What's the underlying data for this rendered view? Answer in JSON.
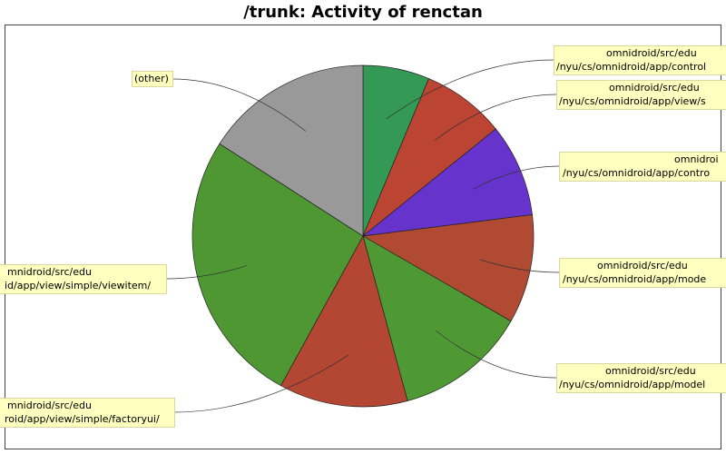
{
  "chart_data": {
    "type": "pie",
    "title": "/trunk: Activity of renctan",
    "categories": [
      [
        "omnidroid/src/edu",
        "/nyu/cs/omnidroid/app/control"
      ],
      [
        "omnidroid/src/edu",
        "/nyu/cs/omnidroid/app/view/s"
      ],
      [
        "omnidroi",
        "/nyu/cs/omnidroid/app/contro"
      ],
      [
        "omnidroid/src/edu",
        "/nyu/cs/omnidroid/app/mode"
      ],
      [
        "omnidroid/src/edu",
        "/nyu/cs/omnidroid/app/model"
      ],
      [
        "mnidroid/src/edu",
        "roid/app/view/simple/factoryui/"
      ],
      [
        "mnidroid/src/edu",
        "id/app/view/simple/viewitem/"
      ],
      [
        "(other)"
      ]
    ],
    "values": [
      6.3,
      7.9,
      8.8,
      10.3,
      12.5,
      12.2,
      26.1,
      15.9
    ],
    "colors": [
      "#339955",
      "#bb4433",
      "#6633cc",
      "#b04a33",
      "#4e9933",
      "#b34733",
      "#4f9733",
      "#999999"
    ]
  }
}
